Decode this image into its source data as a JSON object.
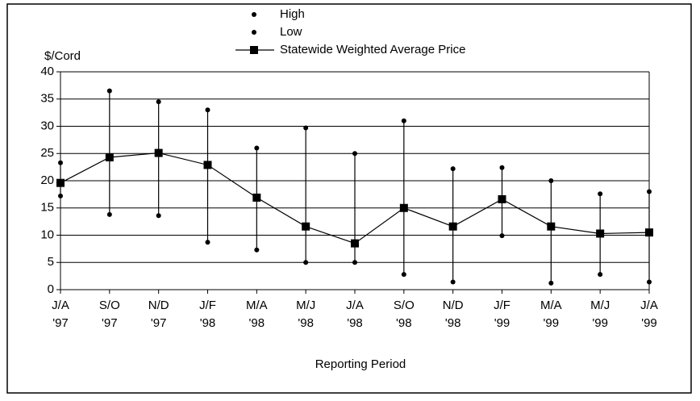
{
  "chart_data": {
    "type": "line",
    "y_label": "$/Cord",
    "x_label": "Reporting Period",
    "categories": [
      [
        "J/A",
        "'97"
      ],
      [
        "S/O",
        "'97"
      ],
      [
        "N/D",
        "'97"
      ],
      [
        "J/F",
        "'98"
      ],
      [
        "M/A",
        "'98"
      ],
      [
        "M/J",
        "'98"
      ],
      [
        "J/A",
        "'98"
      ],
      [
        "S/O",
        "'98"
      ],
      [
        "N/D",
        "'98"
      ],
      [
        "J/F",
        "'99"
      ],
      [
        "M/A",
        "'99"
      ],
      [
        "M/J",
        "'99"
      ],
      [
        "J/A",
        "'99"
      ]
    ],
    "series": [
      {
        "name": "High",
        "color": "#000000",
        "values": [
          23.3,
          36.5,
          34.5,
          33,
          26,
          29.7,
          25,
          31,
          22.2,
          22.4,
          20,
          17.6,
          18
        ]
      },
      {
        "name": "Low",
        "color": "#000000",
        "values": [
          17.2,
          13.8,
          13.6,
          8.7,
          7.3,
          5,
          5,
          2.8,
          1.4,
          9.9,
          1.2,
          2.8,
          1.4
        ]
      },
      {
        "name": "Statewide Weighted Average Price",
        "color": "#000000",
        "values": [
          19.6,
          24.3,
          25.1,
          22.9,
          16.9,
          11.6,
          8.5,
          15,
          11.6,
          16.6,
          11.6,
          10.3,
          10.5
        ]
      }
    ],
    "ylim": [
      0,
      40
    ],
    "yticks": [
      0,
      5,
      10,
      15,
      20,
      25,
      30,
      35,
      40
    ],
    "grid": true,
    "legend": "top"
  }
}
